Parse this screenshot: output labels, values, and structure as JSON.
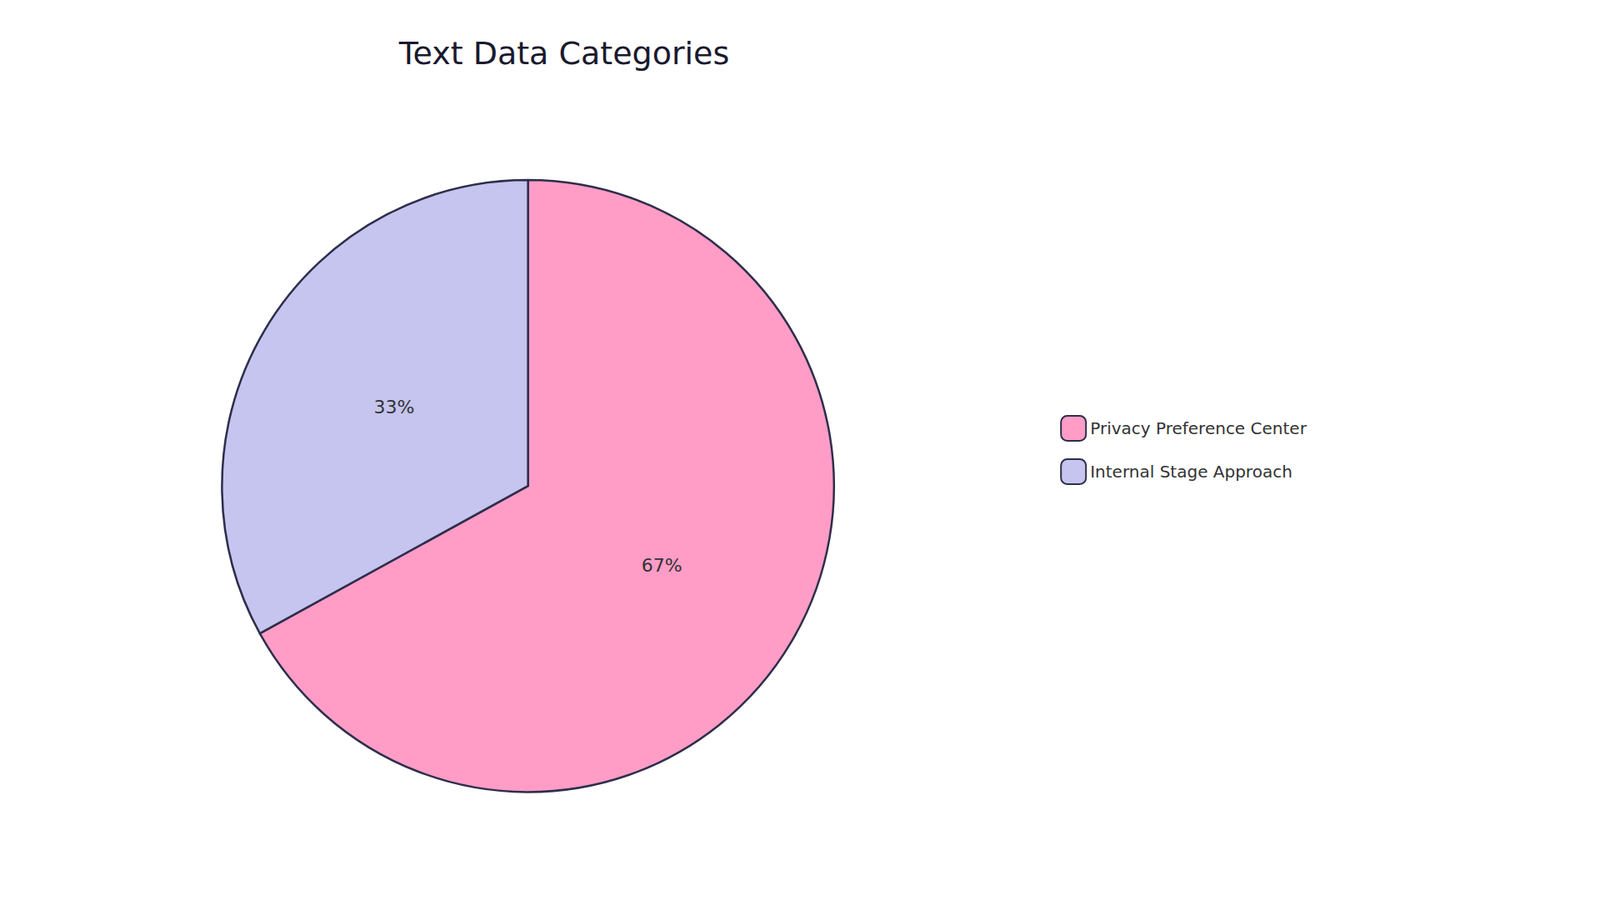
{
  "chart_data": {
    "type": "pie",
    "title": "Text Data Categories",
    "categories": [
      "Privacy Preference Center",
      "Internal Stage Approach"
    ],
    "values": [
      67,
      33
    ],
    "value_labels": [
      "67%",
      "33%"
    ],
    "colors": [
      "#FF9DC7",
      "#C5C5F0"
    ],
    "data_labels": true,
    "legend": "right"
  }
}
